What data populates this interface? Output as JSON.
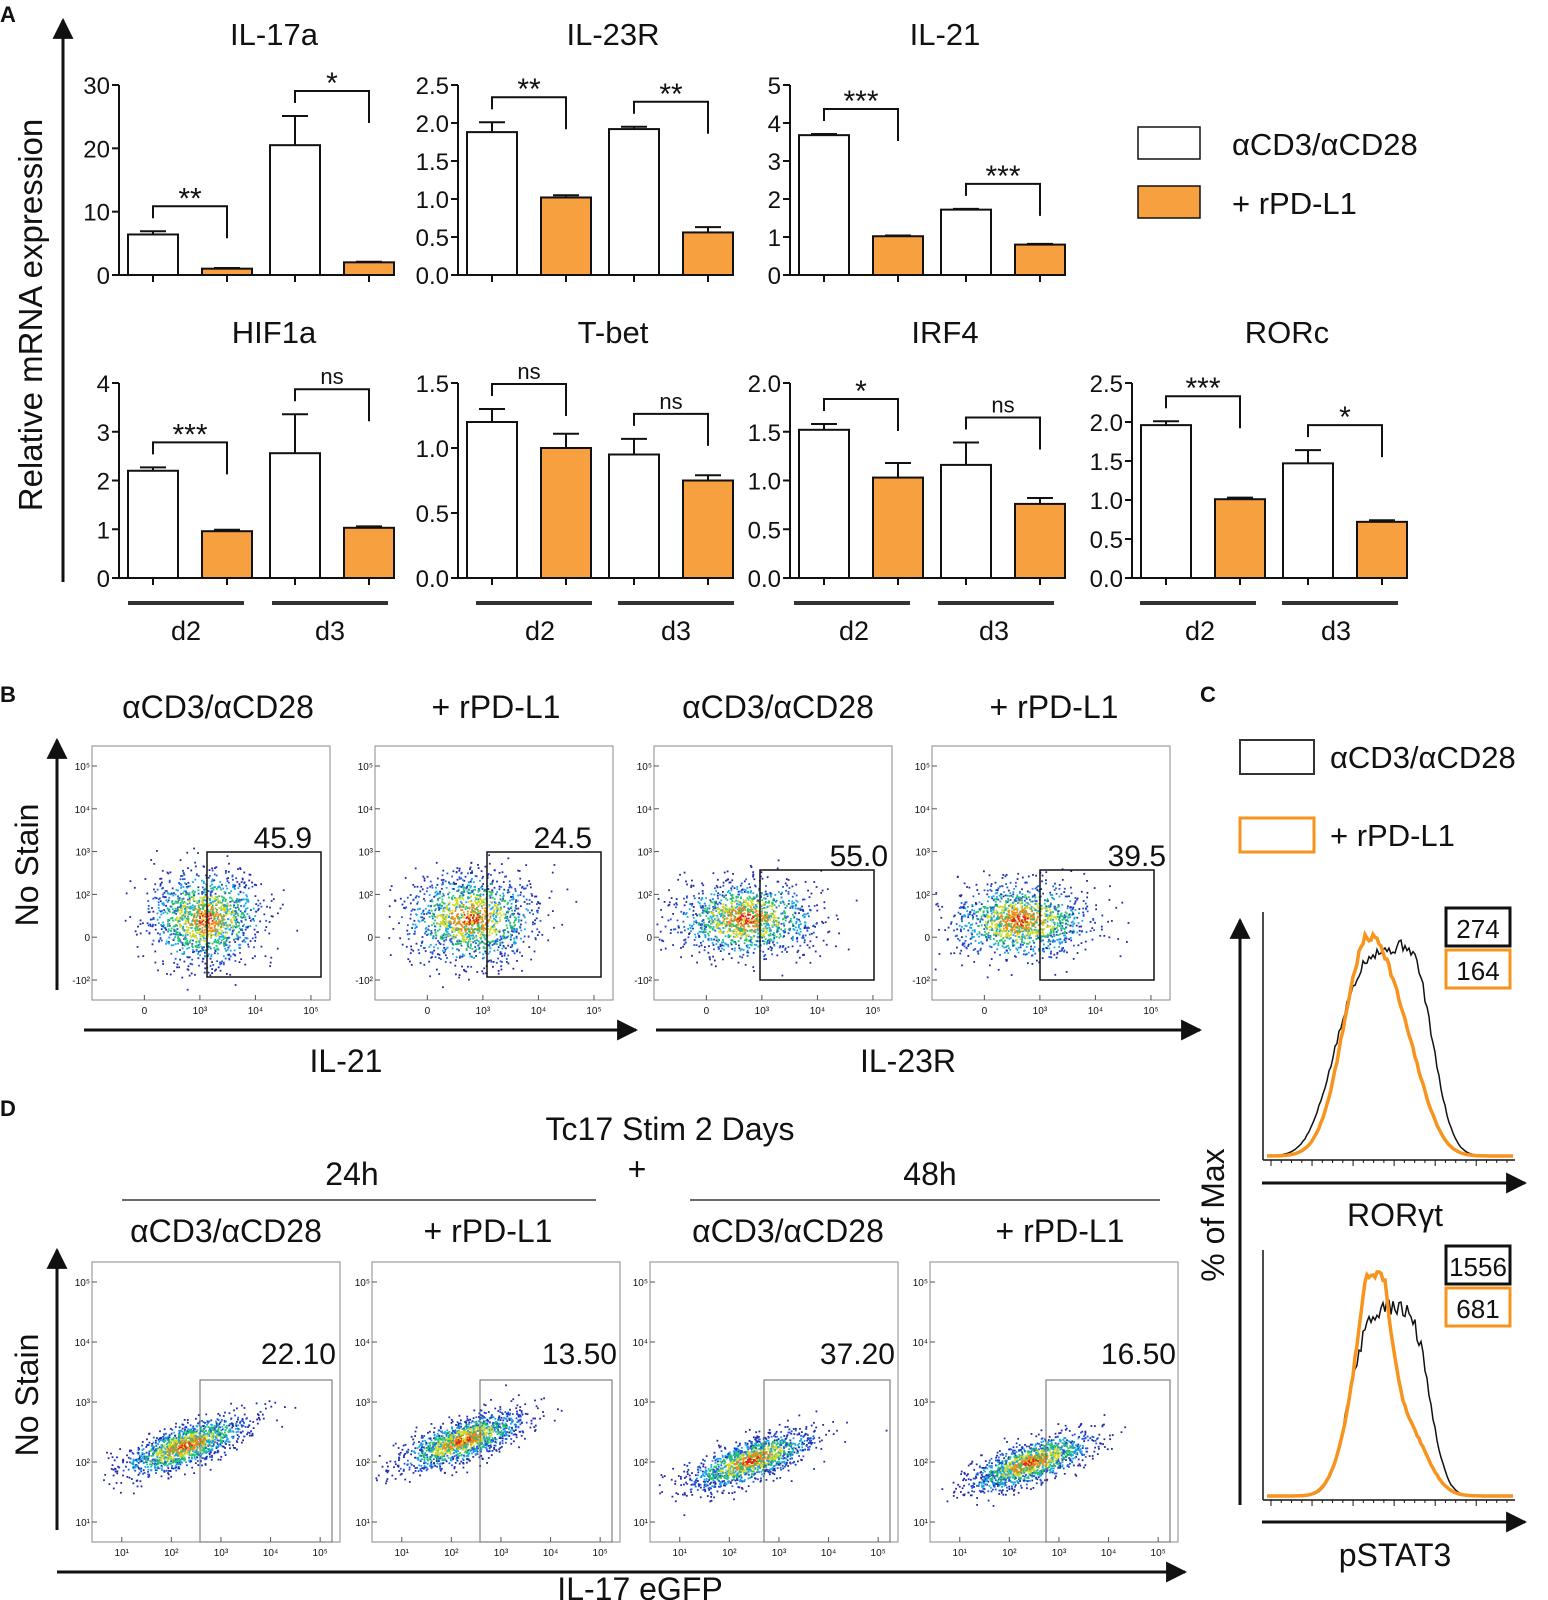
{
  "colors": {
    "orange": "#f7a040",
    "white": "#ffffff",
    "axis": "#111111",
    "orange_line": "#f7941d"
  },
  "panel_labels": [
    "A",
    "B",
    "C",
    "D"
  ],
  "panelA": {
    "ylabel": "Relative mRNA expression",
    "x_groups": [
      "d2",
      "d3"
    ],
    "legend": [
      "αCD3/αCD28",
      "+ rPD-L1"
    ]
  },
  "chart_data": [
    {
      "type": "bar",
      "title": "IL-17a",
      "categories": [
        "d2",
        "d3"
      ],
      "ylim": [
        0,
        30
      ],
      "yticks": [
        "0",
        "10",
        "20",
        "30"
      ],
      "series": [
        {
          "name": "αCD3/αCD28",
          "values": [
            6.4,
            20.5
          ],
          "errors": [
            0.5,
            4.6
          ]
        },
        {
          "name": "+ rPD-L1",
          "values": [
            1.0,
            2.0
          ],
          "errors": [
            0.1,
            0.1
          ]
        }
      ],
      "significance": [
        "**",
        "*"
      ]
    },
    {
      "type": "bar",
      "title": "IL-23R",
      "categories": [
        "d2",
        "d3"
      ],
      "ylim": [
        0,
        2.5
      ],
      "yticks": [
        "0.0",
        "0.5",
        "1.0",
        "1.5",
        "2.0",
        "2.5"
      ],
      "series": [
        {
          "name": "αCD3/αCD28",
          "values": [
            1.88,
            1.92
          ],
          "errors": [
            0.13,
            0.03
          ]
        },
        {
          "name": "+ rPD-L1",
          "values": [
            1.02,
            0.56
          ],
          "errors": [
            0.03,
            0.07
          ]
        }
      ],
      "significance": [
        "**",
        "**"
      ]
    },
    {
      "type": "bar",
      "title": "IL-21",
      "categories": [
        "d2",
        "d3"
      ],
      "ylim": [
        0,
        5
      ],
      "yticks": [
        "0",
        "1",
        "2",
        "3",
        "4",
        "5"
      ],
      "series": [
        {
          "name": "αCD3/αCD28",
          "values": [
            3.68,
            1.72
          ],
          "errors": [
            0.03,
            0.02
          ]
        },
        {
          "name": "+ rPD-L1",
          "values": [
            1.02,
            0.8
          ],
          "errors": [
            0.02,
            0.02
          ]
        }
      ],
      "significance": [
        "***",
        "***"
      ]
    },
    {
      "type": "bar",
      "title": "HIF1a",
      "categories": [
        "d2",
        "d3"
      ],
      "ylim": [
        0,
        4
      ],
      "yticks": [
        "0",
        "1",
        "2",
        "3",
        "4"
      ],
      "series": [
        {
          "name": "αCD3/αCD28",
          "values": [
            2.2,
            2.56
          ],
          "errors": [
            0.07,
            0.8
          ]
        },
        {
          "name": "+ rPD-L1",
          "values": [
            0.96,
            1.03
          ],
          "errors": [
            0.03,
            0.03
          ]
        }
      ],
      "significance": [
        "***",
        "ns"
      ]
    },
    {
      "type": "bar",
      "title": "T-bet",
      "categories": [
        "d2",
        "d3"
      ],
      "ylim": [
        0,
        1.5
      ],
      "yticks": [
        "0.0",
        "0.5",
        "1.0",
        "1.5"
      ],
      "series": [
        {
          "name": "αCD3/αCD28",
          "values": [
            1.2,
            0.95
          ],
          "errors": [
            0.1,
            0.12
          ]
        },
        {
          "name": "+ rPD-L1",
          "values": [
            1.0,
            0.75
          ],
          "errors": [
            0.11,
            0.04
          ]
        }
      ],
      "significance": [
        "ns",
        "ns"
      ]
    },
    {
      "type": "bar",
      "title": "IRF4",
      "categories": [
        "d2",
        "d3"
      ],
      "ylim": [
        0,
        2.0
      ],
      "yticks": [
        "0.0",
        "0.5",
        "1.0",
        "1.5",
        "2.0"
      ],
      "series": [
        {
          "name": "αCD3/αCD28",
          "values": [
            1.52,
            1.16
          ],
          "errors": [
            0.06,
            0.23
          ]
        },
        {
          "name": "+ rPD-L1",
          "values": [
            1.03,
            0.76
          ],
          "errors": [
            0.15,
            0.06
          ]
        }
      ],
      "significance": [
        "*",
        "ns"
      ]
    },
    {
      "type": "bar",
      "title": "RORc",
      "categories": [
        "d2",
        "d3"
      ],
      "ylim": [
        0,
        2.5
      ],
      "yticks": [
        "0.0",
        "0.5",
        "1.0",
        "1.5",
        "2.0",
        "2.5"
      ],
      "series": [
        {
          "name": "αCD3/αCD28",
          "values": [
            1.96,
            1.47
          ],
          "errors": [
            0.05,
            0.17
          ]
        },
        {
          "name": "+ rPD-L1",
          "values": [
            1.01,
            0.72
          ],
          "errors": [
            0.02,
            0.02
          ]
        }
      ],
      "significance": [
        "***",
        "*"
      ]
    }
  ],
  "panelB": {
    "ylabel": "No Stain",
    "titles": [
      "αCD3/αCD28",
      "+ rPD-L1",
      "αCD3/αCD28",
      "+ rPD-L1"
    ],
    "gate_values": [
      "45.9",
      "24.5",
      "55.0",
      "39.5"
    ],
    "xlabels": [
      "IL-21",
      "IL-23R"
    ],
    "yticks": [
      "10⁵",
      "10⁴",
      "10³",
      "10²",
      "0",
      "-10²"
    ],
    "xticks": [
      "0",
      "10³",
      "10⁴",
      "10⁵"
    ]
  },
  "panelC": {
    "legend": [
      "αCD3/αCD28",
      "+ rPD-L1"
    ],
    "ylabel": "% of Max",
    "histograms": [
      {
        "xlabel": "RORγt",
        "mfi": [
          "274",
          "164"
        ]
      },
      {
        "xlabel": "pSTAT3",
        "mfi": [
          "1556",
          "681"
        ]
      }
    ]
  },
  "panelD": {
    "title": "Tc17 Stim 2 Days",
    "plus": "+",
    "timepoints": [
      "24h",
      "48h"
    ],
    "titles": [
      "αCD3/αCD28",
      "+ rPD-L1",
      "αCD3/αCD28",
      "+ rPD-L1"
    ],
    "gate_values": [
      "22.10",
      "13.50",
      "37.20",
      "16.50"
    ],
    "ylabel": "No Stain",
    "xlabel": "IL-17 eGFP",
    "yticks": [
      "10⁵",
      "10⁴",
      "10³",
      "10²",
      "10¹"
    ],
    "xticks": [
      "10¹",
      "10²",
      "10³",
      "10⁴",
      "10⁵"
    ]
  }
}
